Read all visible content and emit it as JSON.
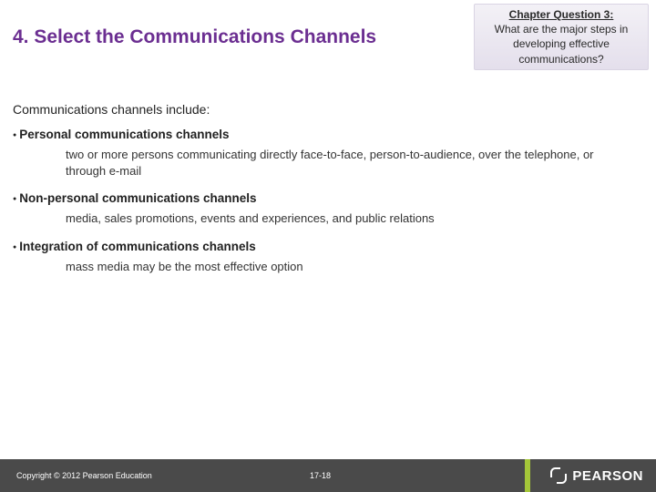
{
  "title": "4. Select the Communications Channels",
  "question_box": {
    "heading": "Chapter Question 3:",
    "body": "What are the major steps in developing effective communications?"
  },
  "intro": "Communications channels include:",
  "items": [
    {
      "label": "Personal communications channels",
      "desc": "two or more persons communicating directly face-to-face, person-to-audience, over the telephone, or through e-mail"
    },
    {
      "label": "Non-personal communications channels",
      "desc": "media, sales promotions, events and experiences, and public relations"
    },
    {
      "label": "Integration of communications channels",
      "desc": "mass media may be the most effective option"
    }
  ],
  "footer": {
    "copyright": "Copyright © 2012 Pearson Education",
    "page": "17-18",
    "brand": "PEARSON"
  },
  "colors": {
    "title_color": "#6b2e91",
    "footer_bg": "#4a4a4a",
    "accent": "#a4c639",
    "qbox_bg_top": "#f3f1f6",
    "qbox_bg_bottom": "#e4dfec"
  }
}
